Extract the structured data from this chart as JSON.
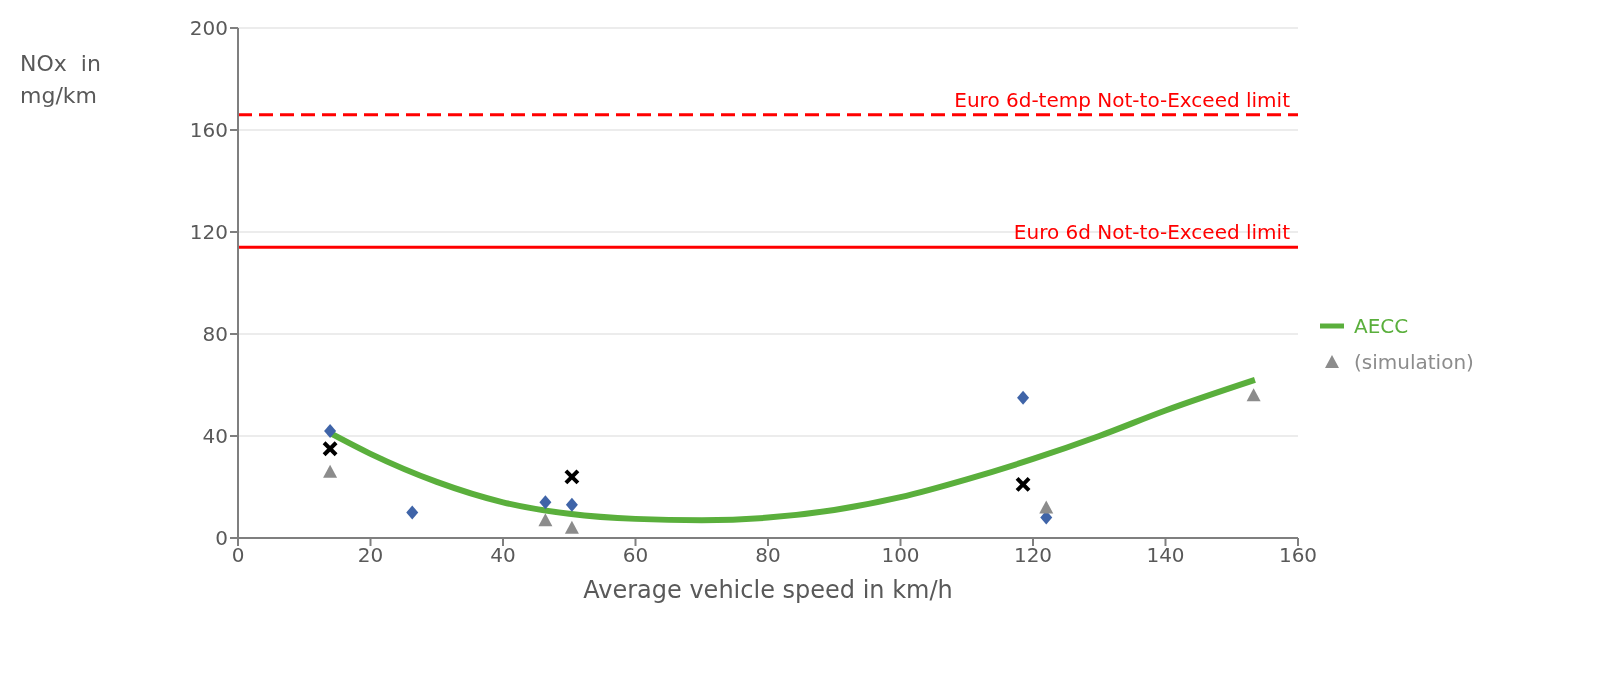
{
  "chart_data": {
    "type": "scatter",
    "xlabel": "Average vehicle speed in km/h",
    "ylabel": "NOx  in mg/km",
    "xlim": [
      0,
      160
    ],
    "xticks": [
      0,
      20,
      40,
      60,
      80,
      100,
      120,
      140,
      160
    ],
    "ylim": [
      0,
      200
    ],
    "yticks": [
      0,
      40,
      80,
      120,
      160,
      200
    ],
    "grid": "y",
    "legend": "right",
    "ref_lines": [
      {
        "axis": "y",
        "value": 166,
        "label": "Euro 6d-temp Not-to-Exceed limit",
        "color": "#ff0000",
        "line_style": "dashed"
      },
      {
        "axis": "y",
        "value": 114,
        "label": "Euro 6d Not-to-Exceed limit",
        "color": "#ff0000",
        "line_style": "solid"
      }
    ],
    "series": [
      {
        "name": "AECC",
        "type": "line",
        "color": "#5aaf3c",
        "marker": "none",
        "x": [
          14,
          20,
          30,
          40,
          50,
          60,
          70,
          80,
          90,
          100,
          110,
          120,
          130,
          140,
          153.5
        ],
        "values": [
          41,
          33,
          22,
          14,
          9.5,
          7.5,
          7,
          8,
          11,
          16,
          23,
          31,
          40,
          50,
          62
        ]
      },
      {
        "color": "#3f64a8",
        "marker": "diamond",
        "x": [
          13.9,
          26.3,
          46.4,
          50.4,
          118.5,
          122
        ],
        "values": [
          42,
          10,
          14,
          13,
          55,
          8
        ]
      },
      {
        "name": "(simulation)",
        "color": "#8c8c8c",
        "marker": "triangle",
        "x": [
          13.9,
          46.4,
          50.4,
          122,
          153.3
        ],
        "values": [
          26,
          7,
          4,
          12,
          56
        ]
      },
      {
        "color": "#000000",
        "marker": "cross",
        "x": [
          13.9,
          50.4,
          118.5
        ],
        "values": [
          35,
          24,
          21
        ]
      }
    ]
  }
}
